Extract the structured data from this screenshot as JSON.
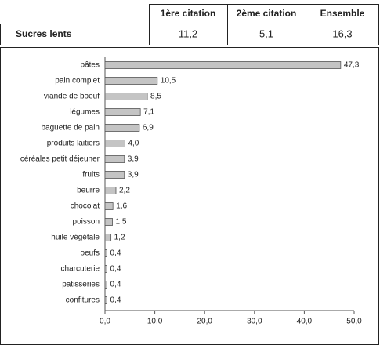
{
  "table": {
    "header": [
      "1ère citation",
      "2ème citation",
      "Ensemble"
    ],
    "rows": [
      [
        "Sucres lents",
        "11,2",
        "5,1",
        "16,3"
      ]
    ]
  },
  "chart_data": {
    "type": "bar",
    "orientation": "horizontal",
    "categories": [
      "pâtes",
      "pain complet",
      "viande de boeuf",
      "légumes",
      "baguette de pain",
      "produits  laitiers",
      "céréales petit déjeuner",
      "fruits",
      "beurre",
      "chocolat",
      "poisson",
      "huile végétale",
      "oeufs",
      "charcuterie",
      "patisseries",
      "confitures"
    ],
    "values": [
      47.3,
      10.5,
      8.5,
      7.1,
      6.9,
      4.0,
      3.9,
      3.9,
      2.2,
      1.6,
      1.5,
      1.2,
      0.4,
      0.4,
      0.4,
      0.4
    ],
    "value_labels": [
      "47,3",
      "10,5",
      "8,5",
      "7,1",
      "6,9",
      "4,0",
      "3,9",
      "3,9",
      "2,2",
      "1,6",
      "1,5",
      "1,2",
      "0,4",
      "0,4",
      "0,4",
      "0,4"
    ],
    "color": "#c4c4c4",
    "xlim": [
      0,
      50
    ],
    "xticks": [
      {
        "value": 0,
        "label": "0,0"
      },
      {
        "value": 10,
        "label": "10,0"
      },
      {
        "value": 20,
        "label": "20,0"
      },
      {
        "value": 30,
        "label": "30,0"
      },
      {
        "value": 40,
        "label": "40,0"
      },
      {
        "value": 50,
        "label": "50,0"
      }
    ]
  }
}
